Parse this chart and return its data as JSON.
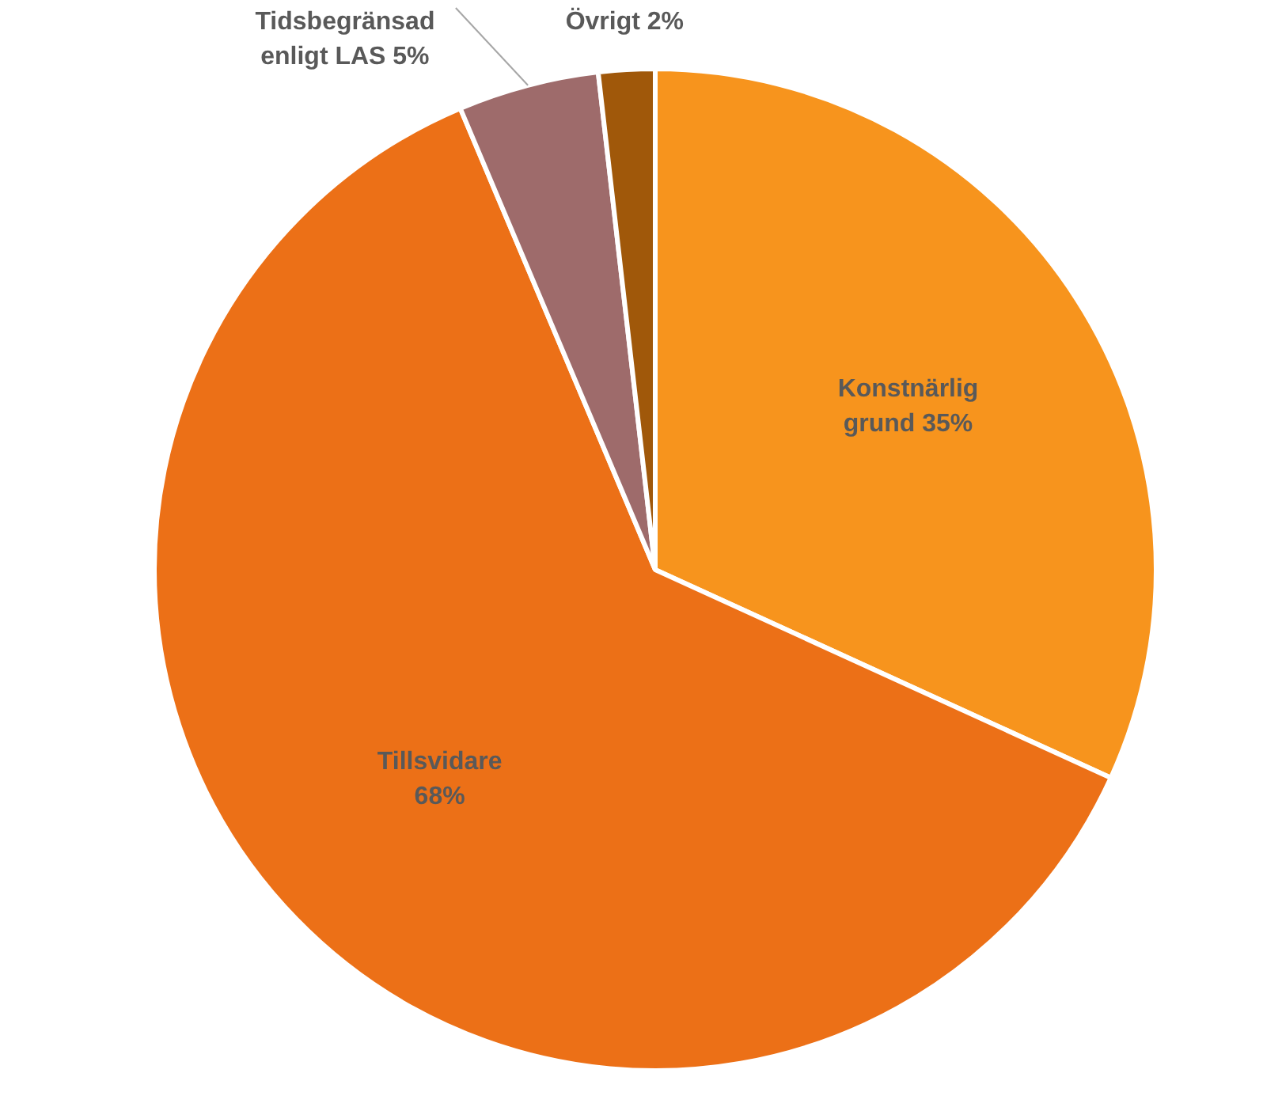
{
  "chart_data": {
    "type": "pie",
    "categories": [
      "Konstnärlig grund",
      "Tillsvidare",
      "Tidsbegränsad enligt LAS",
      "Övrigt"
    ],
    "values": [
      35,
      68,
      5,
      2
    ],
    "colors": [
      "#f7941d",
      "#ec7017",
      "#9e6b6b",
      "#a0580a"
    ],
    "value_labels": [
      "35%",
      "68%",
      "5%",
      "2%"
    ],
    "legend": false
  }
}
